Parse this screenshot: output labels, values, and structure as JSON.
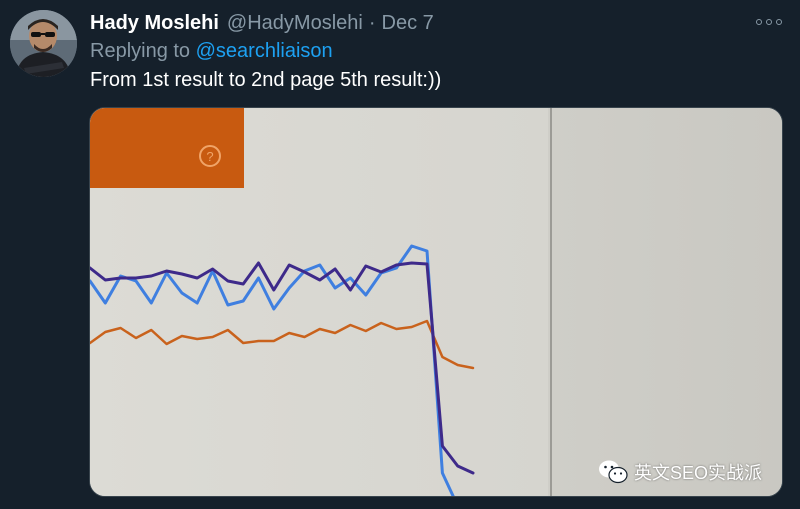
{
  "tweet": {
    "display_name": "Hady Moslehi",
    "handle": "@HadyMoslehi",
    "separator": "·",
    "date": "Dec 7",
    "replying_prefix": "Replying to",
    "replying_to": "@searchliaison",
    "text": "From 1st result to 2nd page 5th result:))"
  },
  "icons": {
    "more": "more-options-icon",
    "avatar": "avatar-image",
    "help": "question-circle-icon",
    "watermark": "wechat-icon"
  },
  "watermark": {
    "text": "英文SEO实战派"
  },
  "colors": {
    "background": "#15202b",
    "link": "#1da1f2",
    "muted": "#8899a6",
    "orange_block": "#c85a10",
    "line_light_blue": "#3f7fe0",
    "line_purple": "#3e2a8a",
    "line_orange": "#c9621c"
  },
  "chart_data": {
    "type": "line",
    "title": "",
    "xlabel": "",
    "ylabel": "",
    "x": [
      0,
      1,
      2,
      3,
      4,
      5,
      6,
      7,
      8,
      9,
      10,
      11,
      12,
      13,
      14,
      15,
      16,
      17,
      18,
      19,
      20,
      21,
      22,
      23,
      24,
      25
    ],
    "series": [
      {
        "values": [
          62,
          40,
          67,
          62,
          40,
          70,
          50,
          40,
          72,
          38,
          42,
          65,
          34,
          55,
          72,
          78,
          55,
          65,
          48,
          70,
          75,
          97,
          92,
          -130,
          -163,
          -170
        ]
      },
      {
        "values": [
          75,
          63,
          65,
          65,
          67,
          72,
          69,
          65,
          74,
          62,
          59,
          80,
          53,
          78,
          71,
          63,
          74,
          53,
          77,
          71,
          78,
          80,
          79,
          -103,
          -123,
          -130
        ]
      },
      {
        "values": [
          0,
          11,
          15,
          5,
          13,
          -1,
          7,
          4,
          6,
          13,
          0,
          2,
          2,
          10,
          6,
          14,
          10,
          18,
          12,
          20,
          14,
          16,
          22,
          -14,
          -22,
          -25
        ]
      }
    ]
  }
}
